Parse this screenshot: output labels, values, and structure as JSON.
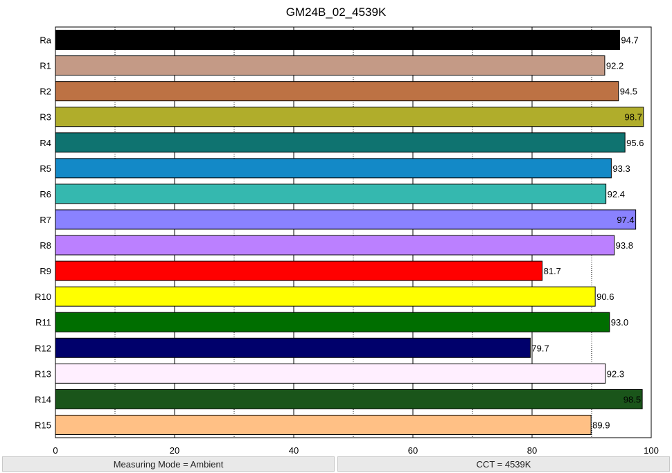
{
  "chart_data": {
    "type": "bar",
    "orientation": "horizontal",
    "title": "GM24B_02_4539K",
    "xlabel": "",
    "ylabel": "",
    "xlim": [
      0,
      100
    ],
    "xticks": [
      0,
      20,
      40,
      60,
      80,
      100
    ],
    "minor_gridlines": [
      10,
      30,
      50,
      70,
      90
    ],
    "grid": true,
    "categories": [
      "Ra",
      "R1",
      "R2",
      "R3",
      "R4",
      "R5",
      "R6",
      "R7",
      "R8",
      "R9",
      "R10",
      "R11",
      "R12",
      "R13",
      "R14",
      "R15"
    ],
    "values": [
      94.7,
      92.2,
      94.5,
      98.7,
      95.6,
      93.3,
      92.4,
      97.4,
      93.8,
      81.7,
      90.6,
      93.0,
      79.7,
      92.3,
      98.5,
      89.9
    ],
    "value_labels": [
      "94.7",
      "92.2",
      "94.5",
      "98.7",
      "95.6",
      "93.3",
      "92.4",
      "97.4",
      "93.8",
      "81.7",
      "90.6",
      "93.0",
      "79.7",
      "92.3",
      "98.5",
      "89.9"
    ],
    "colors": [
      "#000000",
      "#c49a86",
      "#bd7244",
      "#b0ad2b",
      "#0f7370",
      "#1389c7",
      "#35b8af",
      "#8a82ff",
      "#bb80ff",
      "#ff0000",
      "#ffff00",
      "#006e00",
      "#00006b",
      "#ffefff",
      "#1a551a",
      "#ffc085"
    ]
  },
  "status": {
    "left": "Measuring Mode = Ambient",
    "right": "CCT = 4539K"
  }
}
